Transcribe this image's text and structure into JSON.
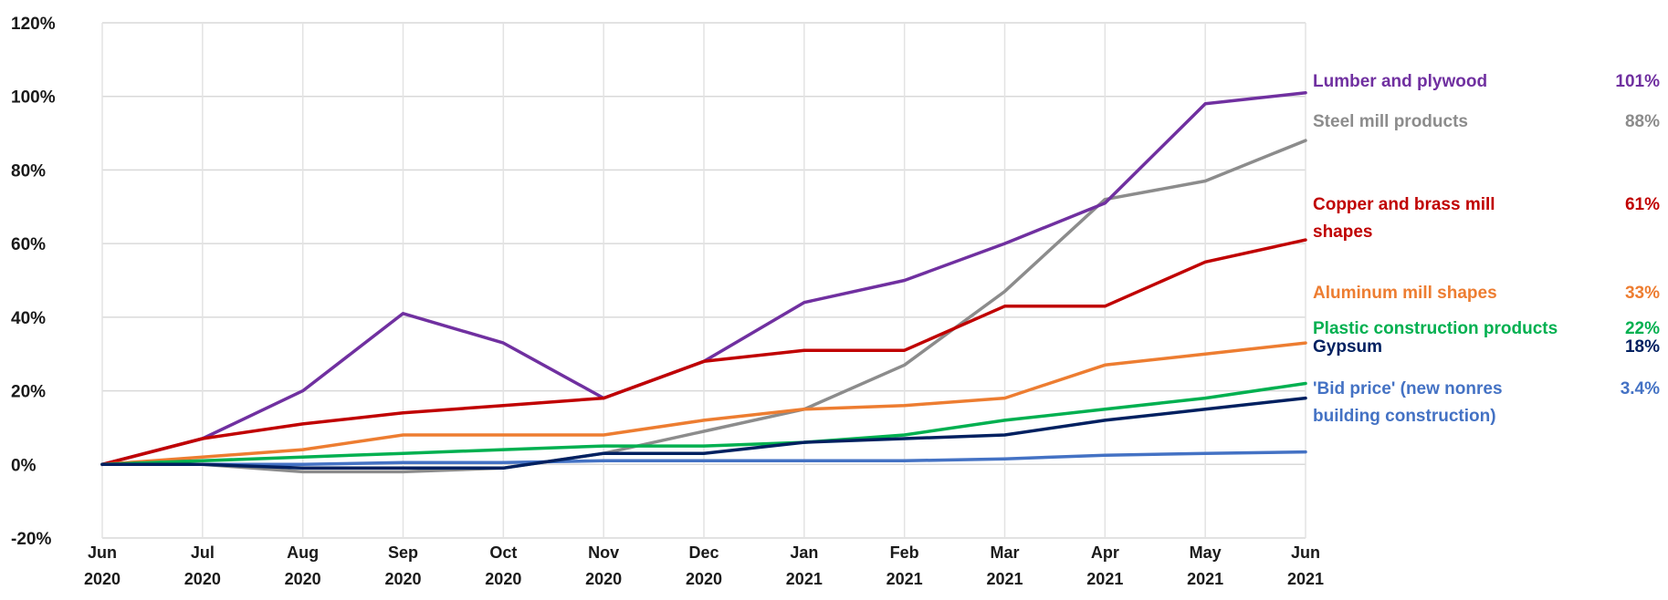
{
  "chart_data": {
    "type": "line",
    "title": "",
    "xlabel": "",
    "ylabel": "",
    "ylim": [
      -20,
      120
    ],
    "yticks": [
      "120%",
      "100%",
      "80%",
      "60%",
      "40%",
      "20%",
      "0%",
      "-20%"
    ],
    "grid": true,
    "categories": [
      [
        "Jun",
        "2020"
      ],
      [
        "Jul",
        "2020"
      ],
      [
        "Aug",
        "2020"
      ],
      [
        "Sep",
        "2020"
      ],
      [
        "Oct",
        "2020"
      ],
      [
        "Nov",
        "2020"
      ],
      [
        "Dec",
        "2020"
      ],
      [
        "Jan",
        "2021"
      ],
      [
        "Feb",
        "2021"
      ],
      [
        "Mar",
        "2021"
      ],
      [
        "Apr",
        "2021"
      ],
      [
        "May",
        "2021"
      ],
      [
        "Jun",
        "2021"
      ]
    ],
    "series": [
      {
        "name": "Steel mill products",
        "end_value_label": "88%",
        "color": "#8c8c8c",
        "values": [
          0,
          0,
          -2,
          -2,
          -1,
          3,
          9,
          15,
          27,
          47,
          72,
          77,
          88
        ]
      },
      {
        "name": "Lumber and plywood",
        "end_value_label": "101%",
        "color": "#7030a0",
        "values": [
          0,
          7,
          20,
          41,
          33,
          18,
          28,
          44,
          50,
          60,
          71,
          98,
          101
        ]
      },
      {
        "name": "Copper and brass mill shapes",
        "end_value_label": "61%",
        "color": "#c00000",
        "values": [
          0,
          7,
          11,
          14,
          16,
          18,
          28,
          31,
          31,
          43,
          43,
          55,
          61
        ]
      },
      {
        "name": "Aluminum mill shapes",
        "end_value_label": "33%",
        "color": "#ed7d31",
        "values": [
          0,
          2,
          4,
          8,
          8,
          8,
          12,
          15,
          16,
          18,
          27,
          30,
          33
        ]
      },
      {
        "name": "Plastic construction products",
        "end_value_label": "22%",
        "color": "#00b050",
        "values": [
          0,
          1,
          2,
          3,
          4,
          5,
          5,
          6,
          8,
          12,
          15,
          18,
          22
        ]
      },
      {
        "name": "'Bid price' (new nonres building construction)",
        "end_value_label": "3.4%",
        "color": "#4472c4",
        "values": [
          0,
          0,
          0,
          0.5,
          0.5,
          1,
          1,
          1,
          1,
          1.5,
          2.5,
          3,
          3.4
        ]
      },
      {
        "name": "Gypsum",
        "end_value_label": "18%",
        "color": "#002060",
        "values": [
          0,
          0,
          -1,
          -1,
          -1,
          3,
          3,
          6,
          7,
          8,
          12,
          15,
          18
        ]
      }
    ],
    "annotations": [
      {
        "series": "Lumber and plywood",
        "lines": [
          "Lumber and plywood"
        ],
        "value": "101%"
      },
      {
        "series": "Steel mill products",
        "lines": [
          "Steel mill products"
        ],
        "value": "88%"
      },
      {
        "series": "Copper and brass mill shapes",
        "lines": [
          "Copper and brass mill",
          "shapes"
        ],
        "value": "61%"
      },
      {
        "series": "Aluminum mill shapes",
        "lines": [
          "Aluminum mill shapes"
        ],
        "value": "33%"
      },
      {
        "series": "Plastic construction products",
        "lines": [
          "Plastic construction products"
        ],
        "value": "22%"
      },
      {
        "series": "Gypsum",
        "lines": [
          "Gypsum"
        ],
        "value": "18%"
      },
      {
        "series": "'Bid price' (new nonres building construction)",
        "lines": [
          "'Bid price' (new nonres",
          "building construction)"
        ],
        "value": "3.4%"
      }
    ]
  }
}
